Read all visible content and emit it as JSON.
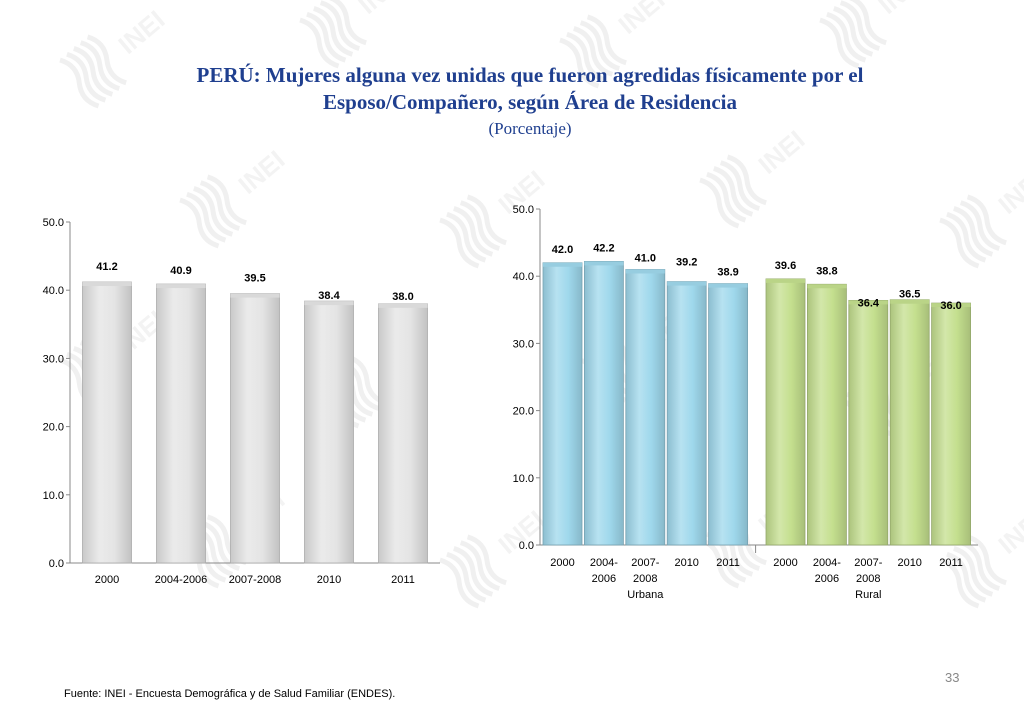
{
  "header": {
    "title_line1": "PERÚ: Mujeres alguna vez unidas que fueron agredidas físicamente por el",
    "title_line2": "Esposo/Compañero, según Área de Residencia",
    "subtitle": "(Porcentaje)"
  },
  "footer": {
    "source": "Fuente: INEI - Encuesta Demográfica y de Salud Familiar (ENDES).",
    "page_number": "33"
  },
  "watermark_text": "INEI",
  "chart_data": [
    {
      "type": "bar",
      "title": "",
      "categories": [
        "2000",
        "2004-2006",
        "2007-2008",
        "2010",
        "2011"
      ],
      "values": [
        41.2,
        40.9,
        39.5,
        38.4,
        38.0
      ],
      "ylim": [
        0,
        50
      ],
      "yticks": [
        "0.0",
        "10.0",
        "20.0",
        "30.0",
        "40.0",
        "50.0"
      ],
      "value_labels": [
        "41.2",
        "40.9",
        "39.5",
        "38.4",
        "38.0"
      ],
      "bar_color": "#e4e4e4",
      "grid": false
    },
    {
      "type": "bar",
      "title": "",
      "ylim": [
        0,
        50
      ],
      "yticks": [
        "0.0",
        "10.0",
        "20.0",
        "30.0",
        "40.0",
        "50.0"
      ],
      "grid": false,
      "groups": [
        {
          "name": "Urbana",
          "color": "#9fd8ec",
          "categories": [
            [
              "2000"
            ],
            [
              "2004-",
              "2006"
            ],
            [
              "2007-",
              "2008"
            ],
            [
              "2010"
            ],
            [
              "2011"
            ]
          ],
          "values": [
            42.0,
            42.2,
            41.0,
            39.2,
            38.9
          ],
          "value_labels": [
            "42.0",
            "42.2",
            "41.0",
            "39.2",
            "38.9"
          ]
        },
        {
          "name": "Rural",
          "color": "#c4df8e",
          "categories": [
            [
              "2000"
            ],
            [
              "2004-",
              "2006"
            ],
            [
              "2007-",
              "2008"
            ],
            [
              "2010"
            ],
            [
              "2011"
            ]
          ],
          "values": [
            39.6,
            38.8,
            36.4,
            36.5,
            36.0
          ],
          "value_labels": [
            "39.6",
            "38.8",
            "36.4",
            "36.5",
            "36.0"
          ]
        }
      ]
    }
  ]
}
